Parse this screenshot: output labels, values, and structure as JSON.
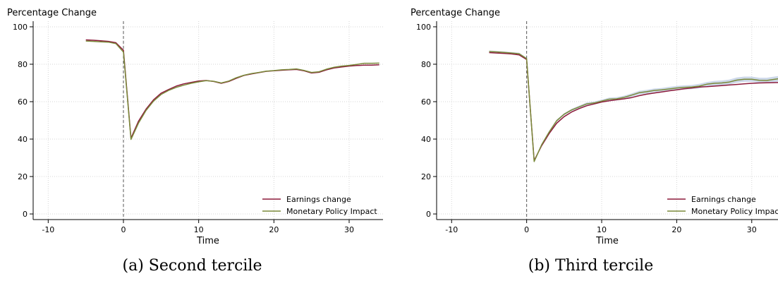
{
  "captions": [
    "(a) Second tercile",
    "(b) Third tercile"
  ],
  "colors": {
    "earnings": "#8b1a3a",
    "monetary": "#7a8a3a",
    "band": "#b8c8e0",
    "grid": "#d6d6d6",
    "vline": "#555555"
  },
  "chart_data": [
    {
      "type": "line",
      "title": "",
      "ylabel": "Percentage Change",
      "xlabel": "Time",
      "xlim": [
        -12,
        34.5
      ],
      "ylim": [
        -3,
        103
      ],
      "xticks": [
        -10,
        0,
        10,
        20,
        30
      ],
      "yticks": [
        0,
        20,
        40,
        60,
        80,
        100
      ],
      "grid": true,
      "legend_position": "bottom-right",
      "vline_x": 0,
      "x": [
        -5,
        -4,
        -3,
        -2,
        -1,
        0,
        1,
        2,
        3,
        4,
        5,
        6,
        7,
        8,
        9,
        10,
        11,
        12,
        13,
        14,
        15,
        16,
        17,
        18,
        19,
        20,
        21,
        22,
        23,
        24,
        25,
        26,
        27,
        28,
        29,
        30,
        31,
        32,
        33,
        34
      ],
      "series": [
        {
          "name": "Earnings change",
          "color_key": "earnings",
          "values": [
            93,
            92.8,
            92.5,
            92.2,
            91.5,
            87.5,
            40.5,
            49.5,
            56,
            61,
            64.5,
            66.5,
            68.3,
            69.5,
            70.3,
            71,
            71.3,
            70.8,
            69.8,
            70.8,
            72.5,
            74,
            74.8,
            75.5,
            76.2,
            76.5,
            76.8,
            77,
            77.2,
            76.5,
            75.3,
            75.7,
            77,
            78,
            78.5,
            79,
            79.3,
            79.5,
            79.5,
            79.7
          ]
        },
        {
          "name": "Monetary Policy Impact",
          "color_key": "monetary",
          "values": [
            92.4,
            92.2,
            92,
            91.8,
            91,
            86.5,
            39.8,
            48.5,
            55.3,
            60.3,
            63.8,
            66,
            67.6,
            68.8,
            69.8,
            70.6,
            71.2,
            70.9,
            70,
            71,
            72.8,
            74.1,
            75,
            75.6,
            76.3,
            76.6,
            77,
            77.2,
            77.5,
            76.7,
            75.6,
            76,
            77.4,
            78.4,
            79,
            79.4,
            79.9,
            80.5,
            80.5,
            80.6
          ]
        }
      ],
      "band": null
    },
    {
      "type": "line",
      "title": "",
      "ylabel": "Percentage Change",
      "xlabel": "Time",
      "xlim": [
        -12,
        33.5
      ],
      "ylim": [
        -3,
        103
      ],
      "xticks": [
        -10,
        0,
        10,
        20,
        30
      ],
      "yticks": [
        0,
        20,
        40,
        60,
        80,
        100
      ],
      "grid": true,
      "legend_position": "bottom-right",
      "vline_x": 0,
      "x": [
        -5,
        -4,
        -3,
        -2,
        -1,
        0,
        1,
        2,
        3,
        4,
        5,
        6,
        7,
        8,
        9,
        10,
        11,
        12,
        13,
        14,
        15,
        16,
        17,
        18,
        19,
        20,
        21,
        22,
        23,
        24,
        25,
        26,
        27,
        28,
        29,
        30,
        31,
        32,
        33,
        34
      ],
      "series": [
        {
          "name": "Earnings change",
          "color_key": "earnings",
          "values": [
            86.2,
            86,
            85.8,
            85.5,
            85,
            82.5,
            28.5,
            36.5,
            43,
            48.5,
            52,
            54.5,
            56.3,
            57.8,
            58.8,
            59.8,
            60.5,
            61,
            61.5,
            62.2,
            63.2,
            64,
            64.6,
            65.2,
            65.8,
            66.3,
            66.9,
            67.3,
            67.8,
            68,
            68.3,
            68.6,
            68.9,
            69.2,
            69.5,
            69.8,
            70,
            70.1,
            70.2,
            70.3
          ]
        },
        {
          "name": "Monetary Policy Impact",
          "color_key": "monetary",
          "values": [
            86.8,
            86.6,
            86.3,
            86,
            85.6,
            83,
            28,
            37,
            43.8,
            49.8,
            53.3,
            55.6,
            57.2,
            58.8,
            59.3,
            60.3,
            61.3,
            61.5,
            62.3,
            63.5,
            64.8,
            65.3,
            66,
            66.3,
            66.8,
            67.3,
            67.6,
            67.8,
            68.3,
            69.3,
            69.8,
            70,
            70.5,
            71.5,
            72,
            72,
            71.4,
            71.3,
            71.9,
            72.5
          ]
        }
      ],
      "band": {
        "name": "",
        "color_key": "band",
        "lower": [
          86.3,
          86.1,
          85.8,
          85.5,
          85.1,
          82.5,
          27.4,
          36.4,
          43.2,
          49.2,
          52.7,
          55,
          56.5,
          58,
          58.5,
          59.5,
          60.4,
          60.6,
          61.4,
          62.6,
          63.8,
          64.3,
          65,
          65.3,
          65.7,
          66.2,
          66.5,
          66.7,
          67.1,
          68.1,
          68.5,
          68.7,
          69.2,
          70.1,
          70.6,
          70.6,
          70,
          69.8,
          70.4,
          71
        ],
        "upper": [
          87.3,
          87.1,
          86.8,
          86.5,
          86.1,
          83.5,
          28.6,
          37.6,
          44.4,
          50.4,
          53.9,
          56.2,
          57.9,
          59.6,
          60.1,
          61.1,
          62.2,
          62.4,
          63.2,
          64.4,
          65.8,
          66.3,
          67,
          67.3,
          67.9,
          68.4,
          68.7,
          68.9,
          69.5,
          70.5,
          71.1,
          71.3,
          71.8,
          72.9,
          73.4,
          73.4,
          72.8,
          72.8,
          73.4,
          74
        ]
      }
    }
  ]
}
